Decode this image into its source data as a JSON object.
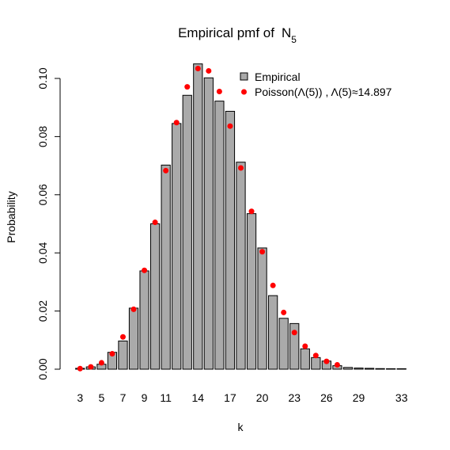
{
  "chart_data": {
    "type": "bar",
    "title": "Empirical pmf of",
    "title_symbol": "N",
    "title_subscript": "5",
    "xlabel": "k",
    "ylabel": "Probability",
    "ylim": [
      0,
      0.105
    ],
    "y_ticks": [
      0.0,
      0.02,
      0.04,
      0.06,
      0.08,
      0.1
    ],
    "y_tick_labels": [
      "0.00",
      "0.02",
      "0.04",
      "0.06",
      "0.08",
      "0.10"
    ],
    "x_tick_labels": [
      "3",
      "5",
      "7",
      "9",
      "11",
      "14",
      "17",
      "20",
      "23",
      "26",
      "29",
      "33"
    ],
    "categories": [
      3,
      4,
      5,
      6,
      7,
      8,
      9,
      10,
      11,
      12,
      13,
      14,
      15,
      16,
      17,
      18,
      19,
      20,
      21,
      22,
      23,
      24,
      25,
      26,
      27,
      28,
      29,
      30,
      31,
      32,
      33
    ],
    "grid": false,
    "legend_position": "top-right",
    "series": [
      {
        "name": "Empirical",
        "kind": "bar",
        "color": "#aaaaaa",
        "values": [
          0.0003,
          0.0008,
          0.0017,
          0.0058,
          0.0097,
          0.021,
          0.0338,
          0.05,
          0.0702,
          0.0845,
          0.0942,
          0.105,
          0.1002,
          0.0922,
          0.0887,
          0.0712,
          0.0535,
          0.0417,
          0.0253,
          0.0175,
          0.0157,
          0.007,
          0.004,
          0.0028,
          0.0012,
          0.0006,
          0.0004,
          0.0003,
          0.0002,
          0.0001,
          0.0001
        ]
      },
      {
        "name": "Poisson(Λ(5)) , Λ(5)≈14.897",
        "kind": "point",
        "color": "#ff0000",
        "values": [
          0.0002,
          0.0008,
          0.0022,
          0.0053,
          0.0111,
          0.0206,
          0.034,
          0.0505,
          0.0683,
          0.0848,
          0.0971,
          0.1034,
          0.1026,
          0.0955,
          0.0836,
          0.0692,
          0.0543,
          0.0404,
          0.0288,
          0.0195,
          0.0126,
          0.0079,
          0.0047,
          0.0027,
          0.0015,
          0.0008,
          0.0004,
          0.0002,
          0.0001,
          0.0,
          0.0
        ]
      }
    ]
  }
}
